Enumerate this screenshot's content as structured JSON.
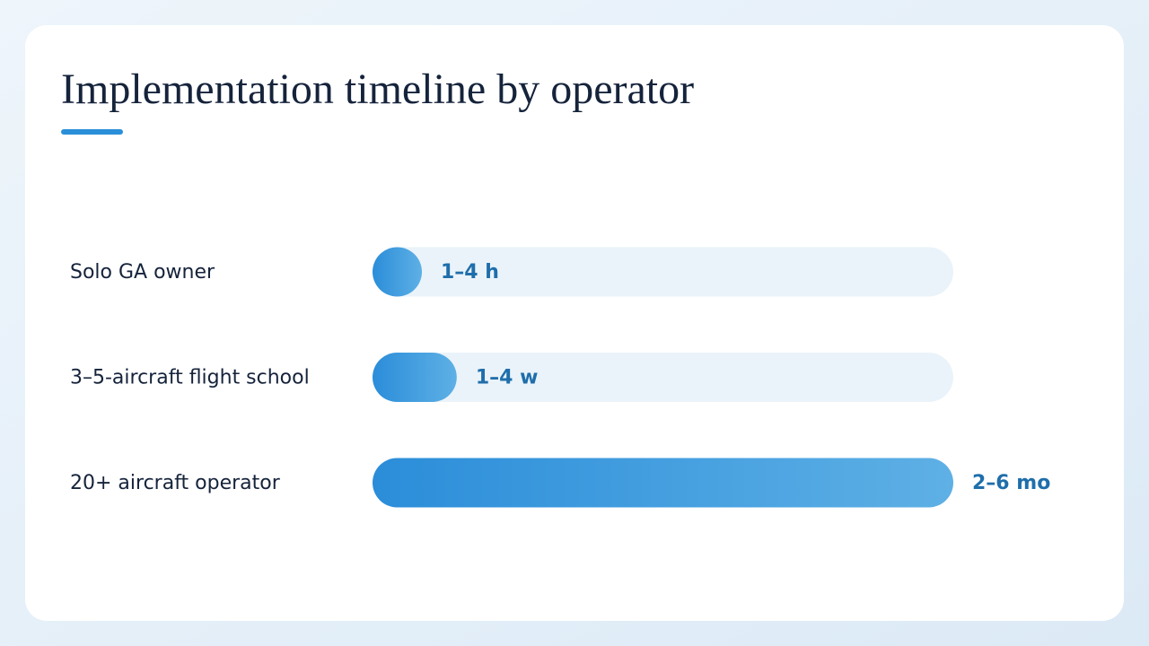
{
  "title": "Implementation timeline by operator",
  "rows": [
    {
      "label": "Solo GA owner",
      "duration": "1–4 h",
      "fill": 8.5
    },
    {
      "label": "3–5-aircraft flight school",
      "duration": "1–4 w",
      "fill": 14.5
    },
    {
      "label": "20+ aircraft operator",
      "duration": "2–6 mo",
      "fill": 100
    }
  ]
}
